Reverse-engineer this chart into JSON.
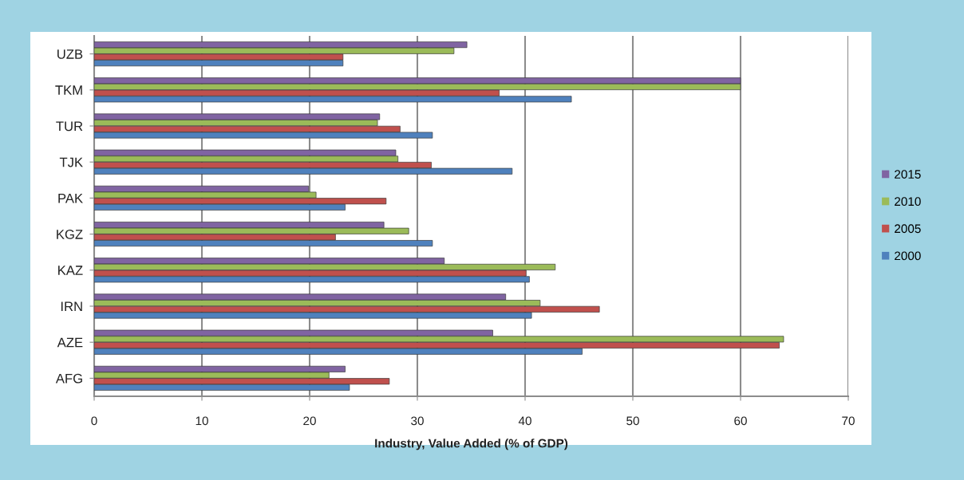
{
  "chart_data": {
    "type": "bar",
    "orientation": "horizontal",
    "xlabel": "Industry, Value Added (% of GDP)",
    "categories": [
      "UZB",
      "TKM",
      "TUR",
      "TJK",
      "PAK",
      "KGZ",
      "KAZ",
      "IRN",
      "AZE",
      "AFG"
    ],
    "series": [
      {
        "name": "2015",
        "color": "#8064a2",
        "values": [
          34.6,
          60,
          26.5,
          28.0,
          19.9,
          26.9,
          32.5,
          38.2,
          37.0,
          23.3
        ]
      },
      {
        "name": "2010",
        "color": "#9bbb59",
        "values": [
          33.4,
          60,
          26.3,
          28.2,
          20.6,
          29.2,
          42.8,
          41.4,
          64.0,
          21.8
        ]
      },
      {
        "name": "2005",
        "color": "#c0504d",
        "values": [
          23.1,
          37.6,
          28.4,
          31.3,
          27.1,
          22.4,
          40.1,
          46.9,
          63.6,
          27.4
        ]
      },
      {
        "name": "2000",
        "color": "#4f81bd",
        "values": [
          23.1,
          44.3,
          31.4,
          38.8,
          23.3,
          31.4,
          40.4,
          40.6,
          45.3,
          23.7
        ]
      }
    ],
    "xlim": [
      0,
      70
    ],
    "xticks": [
      0,
      10,
      20,
      30,
      40,
      50,
      60,
      70
    ],
    "grid": "x",
    "legend": "right"
  }
}
